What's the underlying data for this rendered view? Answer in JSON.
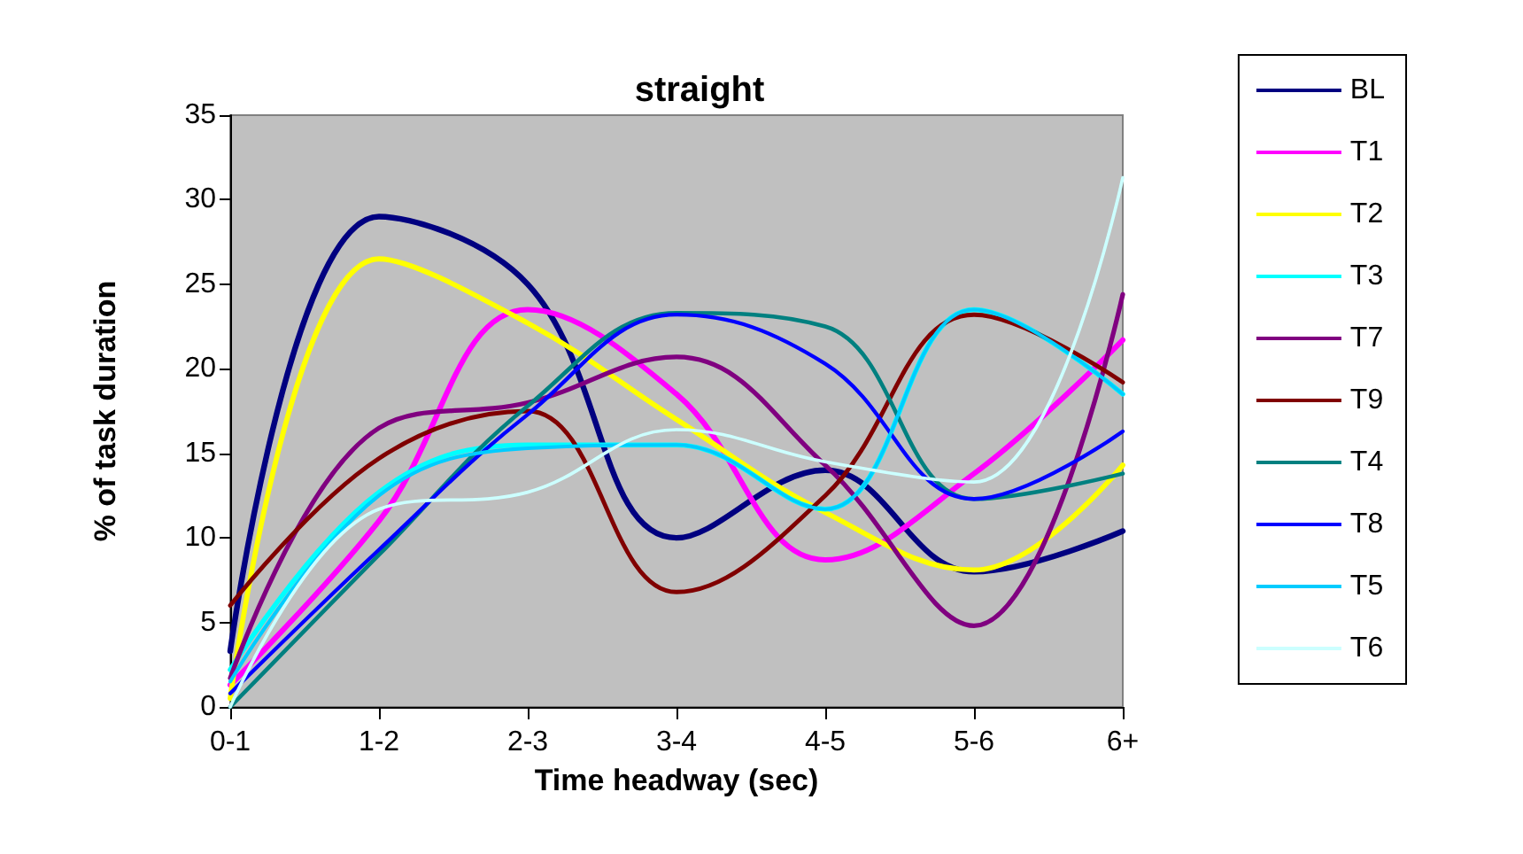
{
  "chart_data": {
    "type": "line",
    "title": "straight",
    "xlabel": "Time headway (sec)",
    "ylabel": "% of task duration",
    "categories": [
      "0-1",
      "1-2",
      "2-3",
      "3-4",
      "4-5",
      "5-6",
      "6+"
    ],
    "series": [
      {
        "name": "BL",
        "color": "#000080",
        "values": [
          3.3,
          29,
          25,
          10,
          14,
          8,
          10.4
        ]
      },
      {
        "name": "T1",
        "color": "#ff00ff",
        "values": [
          1.3,
          11,
          23.5,
          18.5,
          8.7,
          13.8,
          21.7
        ]
      },
      {
        "name": "T2",
        "color": "#ffff00",
        "values": [
          0.5,
          26.5,
          22.7,
          17,
          11.5,
          8.1,
          14.3
        ]
      },
      {
        "name": "T3",
        "color": "#00ffff",
        "values": [
          2.2,
          12.7,
          15.5,
          15.5,
          11.7,
          23.5,
          18.5
        ]
      },
      {
        "name": "T7",
        "color": "#800080",
        "values": [
          1.7,
          16.5,
          18,
          20.7,
          14.3,
          4.8,
          24.4
        ]
      },
      {
        "name": "T9",
        "color": "#800000",
        "values": [
          6,
          14.7,
          17.5,
          6.8,
          12.5,
          23.2,
          19.2
        ]
      },
      {
        "name": "T4",
        "color": "#008080",
        "values": [
          0,
          9,
          17.8,
          23.3,
          22.5,
          12.3,
          13.8
        ]
      },
      {
        "name": "T8",
        "color": "#0000ff",
        "values": [
          0.8,
          9.3,
          17.3,
          23.2,
          20.3,
          12.3,
          16.3
        ]
      },
      {
        "name": "T5",
        "color": "#00ccff",
        "values": [
          1.5,
          12.5,
          15.3,
          15.5,
          11.7,
          23.5,
          18.5
        ]
      },
      {
        "name": "T6",
        "color": "#ccffff",
        "values": [
          0,
          11.7,
          12.7,
          16.4,
          14.5,
          13.3,
          31.3
        ]
      }
    ],
    "ylim": [
      0,
      35
    ],
    "yticks": [
      0,
      5,
      10,
      15,
      20,
      25,
      30,
      35
    ],
    "grid": false,
    "legend": "right",
    "marker": "none",
    "line_style": "solid"
  }
}
